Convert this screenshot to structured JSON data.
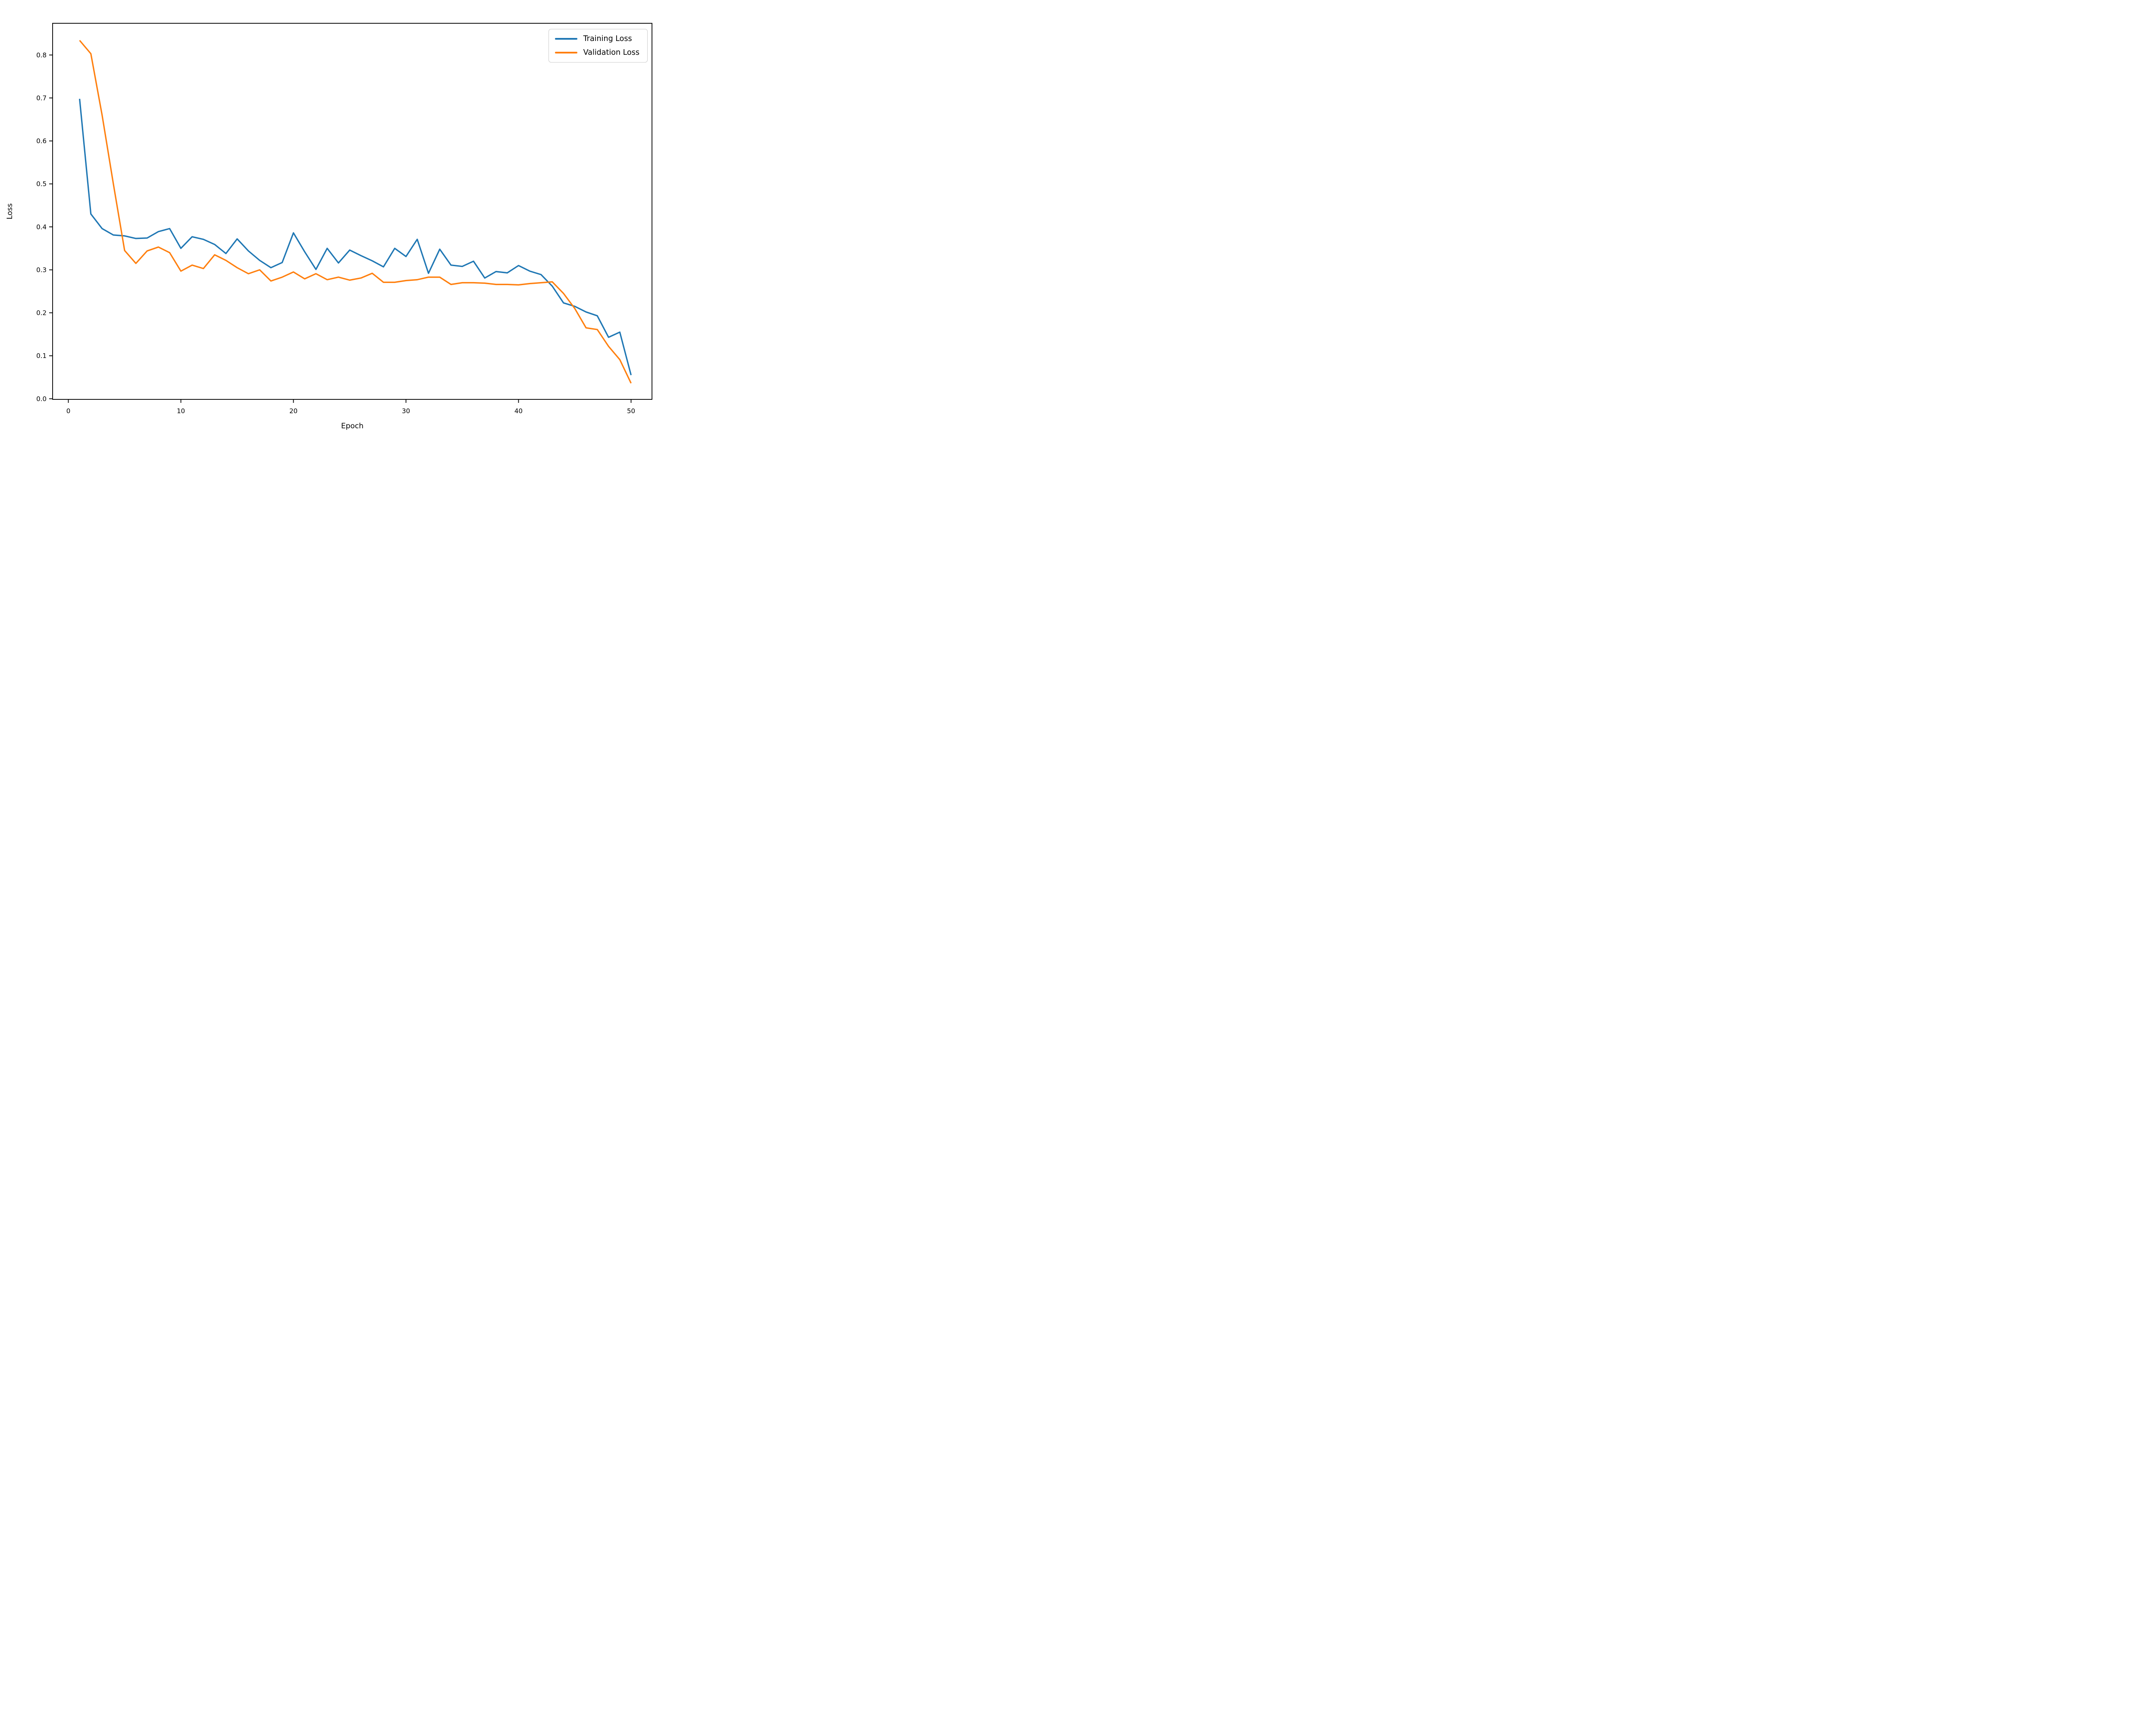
{
  "figure": {
    "background": "#ffffff",
    "plot_border_color": "#000000"
  },
  "chart_data": {
    "type": "line",
    "title": "",
    "xlabel": "Epoch",
    "ylabel": "Loss",
    "grid": false,
    "legend_position": "upper right",
    "xlim": [
      -1.4,
      51.9
    ],
    "ylim": [
      0,
      0.875
    ],
    "xticks": [
      0,
      10,
      20,
      30,
      40,
      50
    ],
    "yticks": [
      0.0,
      0.1,
      0.2,
      0.3,
      0.4,
      0.5,
      0.6,
      0.7,
      0.8
    ],
    "x": [
      1,
      2,
      3,
      4,
      5,
      6,
      7,
      8,
      9,
      10,
      11,
      12,
      13,
      14,
      15,
      16,
      17,
      18,
      19,
      20,
      21,
      22,
      23,
      24,
      25,
      26,
      27,
      28,
      29,
      30,
      31,
      32,
      33,
      34,
      35,
      36,
      37,
      38,
      39,
      40,
      41,
      42,
      43,
      44,
      45,
      46,
      47,
      48,
      49,
      50
    ],
    "series": [
      {
        "name": "Training Loss",
        "color": "#1f77b4",
        "values": [
          0.698,
          0.43,
          0.396,
          0.381,
          0.379,
          0.373,
          0.374,
          0.389,
          0.396,
          0.35,
          0.377,
          0.371,
          0.359,
          0.338,
          0.372,
          0.344,
          0.322,
          0.305,
          0.317,
          0.386,
          0.342,
          0.301,
          0.35,
          0.316,
          0.346,
          0.333,
          0.321,
          0.307,
          0.35,
          0.331,
          0.371,
          0.292,
          0.348,
          0.311,
          0.308,
          0.32,
          0.281,
          0.296,
          0.293,
          0.31,
          0.297,
          0.289,
          0.262,
          0.223,
          0.215,
          0.202,
          0.193,
          0.143,
          0.155,
          0.055
        ]
      },
      {
        "name": "Validation Loss",
        "color": "#ff7f0e",
        "values": [
          0.834,
          0.803,
          0.66,
          0.5,
          0.345,
          0.315,
          0.344,
          0.353,
          0.34,
          0.297,
          0.311,
          0.303,
          0.335,
          0.322,
          0.305,
          0.291,
          0.3,
          0.274,
          0.283,
          0.295,
          0.279,
          0.291,
          0.277,
          0.283,
          0.276,
          0.281,
          0.292,
          0.271,
          0.271,
          0.275,
          0.277,
          0.283,
          0.283,
          0.266,
          0.27,
          0.27,
          0.269,
          0.266,
          0.266,
          0.265,
          0.268,
          0.27,
          0.272,
          0.245,
          0.21,
          0.165,
          0.161,
          0.122,
          0.091,
          0.036
        ]
      }
    ]
  },
  "legend": {
    "items": [
      {
        "label": "Training Loss",
        "color": "#1f77b4"
      },
      {
        "label": "Validation Loss",
        "color": "#ff7f0e"
      }
    ]
  }
}
